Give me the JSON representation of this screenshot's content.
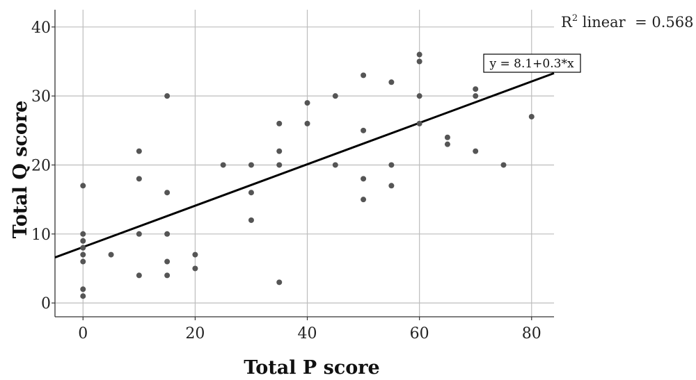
{
  "chart_data": {
    "type": "scatter",
    "xlabel": "Total P score",
    "ylabel": "Total Q score",
    "xlim": [
      -5,
      84
    ],
    "ylim": [
      -2,
      42.5
    ],
    "x_ticks": [
      0,
      20,
      40,
      60,
      80
    ],
    "y_ticks": [
      0,
      10,
      20,
      30,
      40
    ],
    "grid": true,
    "points": [
      {
        "x": 0,
        "y": 17
      },
      {
        "x": 0,
        "y": 10
      },
      {
        "x": 0,
        "y": 9
      },
      {
        "x": 0,
        "y": 8
      },
      {
        "x": 0,
        "y": 7
      },
      {
        "x": 0,
        "y": 6
      },
      {
        "x": 0,
        "y": 2
      },
      {
        "x": 0,
        "y": 1
      },
      {
        "x": 5,
        "y": 7
      },
      {
        "x": 10,
        "y": 22
      },
      {
        "x": 10,
        "y": 18
      },
      {
        "x": 10,
        "y": 10
      },
      {
        "x": 10,
        "y": 4
      },
      {
        "x": 15,
        "y": 30
      },
      {
        "x": 15,
        "y": 16
      },
      {
        "x": 15,
        "y": 10
      },
      {
        "x": 15,
        "y": 6
      },
      {
        "x": 15,
        "y": 4
      },
      {
        "x": 20,
        "y": 7
      },
      {
        "x": 20,
        "y": 5
      },
      {
        "x": 25,
        "y": 20
      },
      {
        "x": 30,
        "y": 20
      },
      {
        "x": 30,
        "y": 16
      },
      {
        "x": 30,
        "y": 12
      },
      {
        "x": 35,
        "y": 26
      },
      {
        "x": 35,
        "y": 22
      },
      {
        "x": 35,
        "y": 20
      },
      {
        "x": 35,
        "y": 3
      },
      {
        "x": 40,
        "y": 29
      },
      {
        "x": 40,
        "y": 26
      },
      {
        "x": 45,
        "y": 30
      },
      {
        "x": 45,
        "y": 20
      },
      {
        "x": 50,
        "y": 33
      },
      {
        "x": 50,
        "y": 25
      },
      {
        "x": 50,
        "y": 18
      },
      {
        "x": 50,
        "y": 15
      },
      {
        "x": 55,
        "y": 32
      },
      {
        "x": 55,
        "y": 20
      },
      {
        "x": 55,
        "y": 17
      },
      {
        "x": 60,
        "y": 36
      },
      {
        "x": 60,
        "y": 35
      },
      {
        "x": 60,
        "y": 30
      },
      {
        "x": 60,
        "y": 26
      },
      {
        "x": 65,
        "y": 24
      },
      {
        "x": 65,
        "y": 23
      },
      {
        "x": 70,
        "y": 31
      },
      {
        "x": 70,
        "y": 30
      },
      {
        "x": 70,
        "y": 22
      },
      {
        "x": 75,
        "y": 20
      },
      {
        "x": 80,
        "y": 27
      }
    ],
    "fit_line": {
      "intercept": 8.1,
      "slope": 0.3
    },
    "annotations": {
      "r2_prefix": "R",
      "r2_sup": "2",
      "r2_text": " linear  = 0.568",
      "equation": "y = 8.1+0.3*x"
    },
    "colors": {
      "point": "#555555",
      "line": "#000000",
      "grid": "#bdbdbd",
      "axis": "#333333"
    }
  }
}
